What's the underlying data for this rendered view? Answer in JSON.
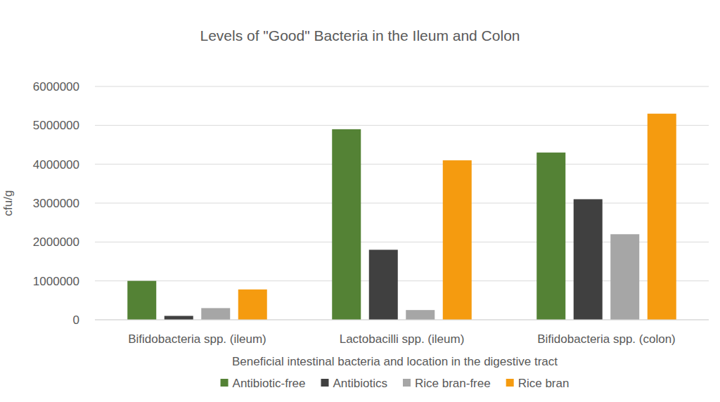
{
  "chart_data": {
    "type": "bar",
    "title": "Levels of \"Good\" Bacteria in the Ileum and Colon",
    "x_label": "Beneficial intestinal bacteria and location in the digestive tract",
    "y_label": "cfu/g",
    "categories": [
      "Bifidobacteria spp. (ileum)",
      "Lactobacilli spp. (ileum)",
      "Bifidobacteria spp. (colon)"
    ],
    "series": [
      {
        "name": "Antibiotic-free",
        "color": "#548235",
        "values": [
          1000000,
          4900000,
          4300000
        ]
      },
      {
        "name": "Antibiotics",
        "color": "#404040",
        "values": [
          100000,
          1800000,
          3100000
        ]
      },
      {
        "name": "Rice bran-free",
        "color": "#a6a6a6",
        "values": [
          300000,
          250000,
          2200000
        ]
      },
      {
        "name": "Rice bran",
        "color": "#f59b0f",
        "values": [
          780000,
          4100000,
          5300000
        ]
      }
    ],
    "ylim": [
      0,
      6000000
    ],
    "yticks": [
      0,
      1000000,
      2000000,
      3000000,
      4000000,
      5000000,
      6000000
    ],
    "grid": true,
    "legend": "bottom"
  }
}
